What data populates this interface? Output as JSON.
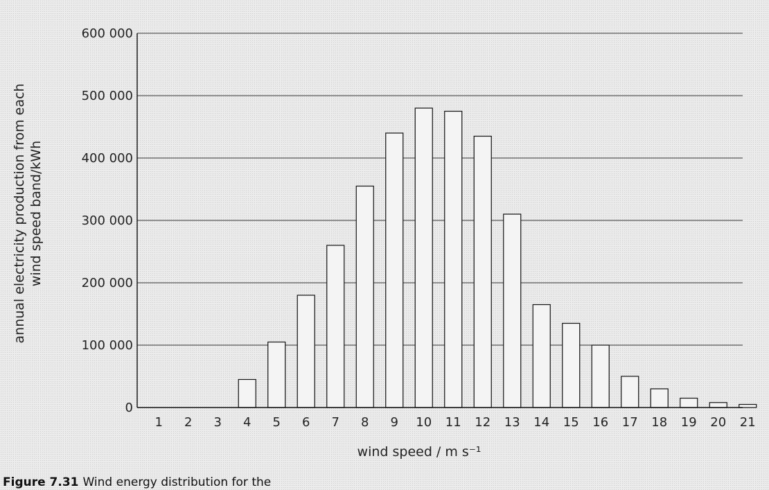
{
  "chart_data": {
    "type": "bar",
    "title": "",
    "xlabel": "wind speed / m s⁻¹",
    "ylabel_lines": [
      "annual electricity production from each",
      "wind speed band/kWh"
    ],
    "ylim": [
      0,
      600000
    ],
    "yticks": [
      0,
      100000,
      200000,
      300000,
      400000,
      500000,
      600000
    ],
    "ytick_labels": [
      "0",
      "100 000",
      "200 000",
      "300 000",
      "400 000",
      "500 000",
      "600 000"
    ],
    "grid": true,
    "categories": [
      "1",
      "2",
      "3",
      "4",
      "5",
      "6",
      "7",
      "8",
      "9",
      "10",
      "11",
      "12",
      "13",
      "14",
      "15",
      "16",
      "17",
      "18",
      "19",
      "20",
      "21"
    ],
    "values": [
      0,
      0,
      0,
      45000,
      105000,
      180000,
      260000,
      355000,
      440000,
      480000,
      475000,
      435000,
      310000,
      165000,
      135000,
      100000,
      50000,
      30000,
      15000,
      8000,
      5000
    ]
  },
  "caption": {
    "label": "Figure 7.31",
    "text": "Wind energy distribution for the"
  }
}
